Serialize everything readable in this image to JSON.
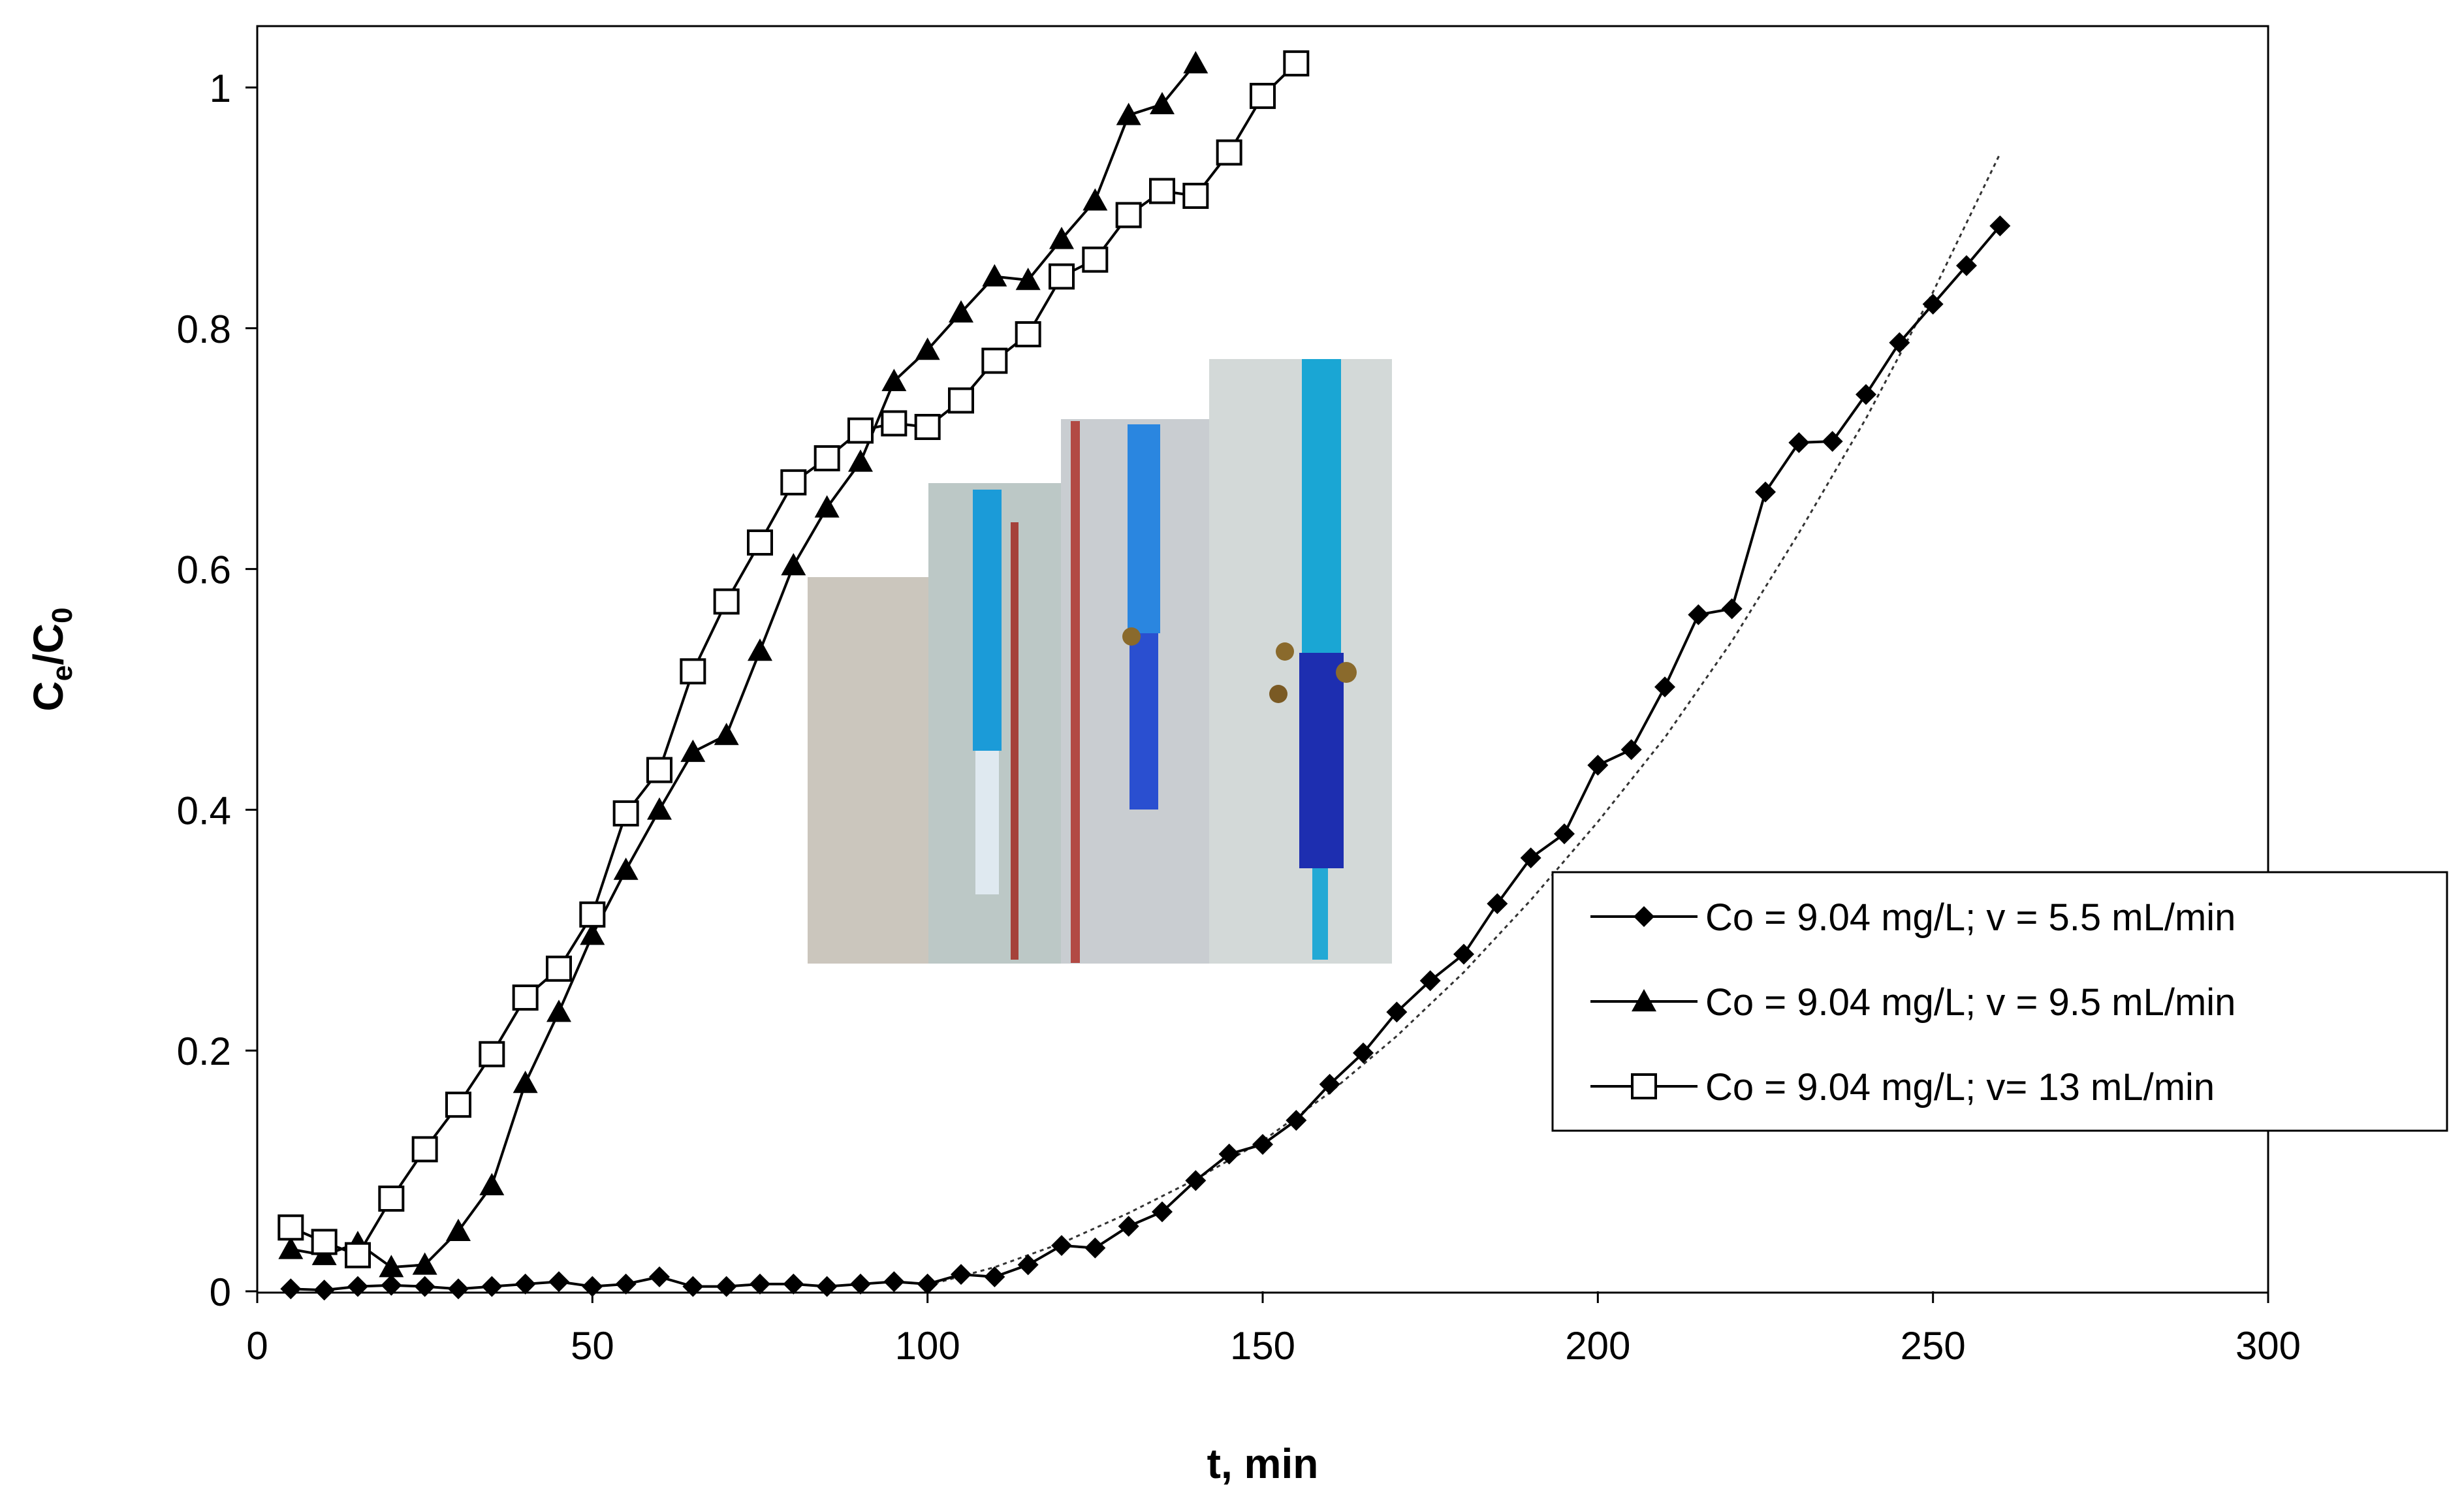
{
  "chart_data": {
    "type": "scatter",
    "title": "",
    "xlabel": "t, min",
    "ylabel": "C",
    "ylabel_sub1": "e",
    "ylabel_mid": "/C",
    "ylabel_sub2": "0",
    "xlim": [
      0,
      300
    ],
    "ylim": [
      0,
      1.0
    ],
    "xticks": [
      0,
      50,
      100,
      150,
      200,
      250,
      300
    ],
    "xtick_labels": [
      "0",
      "50",
      "100",
      "150",
      "200",
      "250",
      "300"
    ],
    "yticks": [
      0,
      0.2,
      0.4,
      0.6,
      0.8,
      1.0
    ],
    "ytick_labels": [
      "0",
      "0.2",
      "0.4",
      "0.6",
      "0.8",
      "1"
    ],
    "grid": false,
    "legend_position": "right",
    "series": [
      {
        "name": "Co = 9.04 mg/L; v = 5.5 mL/min",
        "marker": "diamond",
        "color": "#000000",
        "x": [
          5,
          10,
          15,
          20,
          25,
          30,
          35,
          40,
          45,
          50,
          55,
          60,
          65,
          70,
          75,
          80,
          85,
          90,
          95,
          100,
          105,
          110,
          115,
          120,
          125,
          130,
          135,
          140,
          145,
          150,
          155,
          160,
          165,
          170,
          175,
          180,
          185,
          190,
          195,
          200,
          205,
          210,
          215,
          220,
          225,
          230,
          235,
          240,
          245,
          250,
          255,
          260
        ],
        "y": [
          0.002,
          0.001,
          0.004,
          0.005,
          0.004,
          0.002,
          0.004,
          0.006,
          0.008,
          0.004,
          0.006,
          0.012,
          0.004,
          0.004,
          0.006,
          0.006,
          0.004,
          0.006,
          0.008,
          0.006,
          0.014,
          0.012,
          0.022,
          0.038,
          0.036,
          0.054,
          0.066,
          0.092,
          0.114,
          0.122,
          0.142,
          0.172,
          0.198,
          0.232,
          0.258,
          0.28,
          0.322,
          0.36,
          0.38,
          0.437,
          0.45,
          0.502,
          0.562,
          0.567,
          0.664,
          0.705,
          0.706,
          0.745,
          0.788,
          0.82,
          0.852,
          0.885
        ]
      },
      {
        "name": "Co = 9.04 mg/L; v = 9.5 mL/min",
        "marker": "triangle",
        "color": "#000000",
        "x": [
          5,
          10,
          15,
          20,
          25,
          30,
          35,
          40,
          45,
          50,
          55,
          60,
          65,
          70,
          75,
          80,
          85,
          90,
          95,
          100,
          105,
          110,
          115,
          120,
          125,
          130,
          135,
          140
        ],
        "y": [
          0.035,
          0.03,
          0.04,
          0.02,
          0.022,
          0.05,
          0.088,
          0.173,
          0.232,
          0.296,
          0.35,
          0.4,
          0.448,
          0.462,
          0.532,
          0.603,
          0.651,
          0.689,
          0.756,
          0.782,
          0.813,
          0.843,
          0.84,
          0.874,
          0.906,
          0.977,
          0.986,
          1.02
        ]
      },
      {
        "name": "Co = 9.04 mg/L; v= 13 mL/min",
        "marker": "square-open",
        "color": "#000000",
        "x": [
          5,
          10,
          15,
          20,
          25,
          30,
          35,
          40,
          45,
          50,
          55,
          60,
          65,
          70,
          75,
          80,
          85,
          90,
          95,
          100,
          105,
          110,
          115,
          120,
          125,
          130,
          135,
          140,
          145,
          150,
          155
        ],
        "y": [
          0.053,
          0.041,
          0.03,
          0.077,
          0.118,
          0.155,
          0.197,
          0.244,
          0.268,
          0.313,
          0.397,
          0.433,
          0.515,
          0.573,
          0.622,
          0.672,
          0.692,
          0.715,
          0.721,
          0.718,
          0.74,
          0.773,
          0.795,
          0.843,
          0.857,
          0.894,
          0.914,
          0.91,
          0.946,
          0.993,
          1.02
        ]
      }
    ],
    "fit_curve": {
      "style": "dotted",
      "x": [
        100,
        110,
        120,
        130,
        140,
        150,
        160,
        170,
        180,
        190,
        200,
        210,
        220,
        230,
        240,
        250,
        260
      ],
      "y": [
        0.005,
        0.02,
        0.04,
        0.065,
        0.093,
        0.125,
        0.165,
        0.212,
        0.265,
        0.325,
        0.39,
        0.46,
        0.54,
        0.63,
        0.725,
        0.83,
        0.945
      ]
    }
  },
  "inset_photo": {
    "description_name": "column-photos",
    "panel_colors": [
      "#c9c4bc",
      "#b9c5c9",
      "#c8ccd0",
      "#cfd6d6"
    ],
    "liquid_colors": [
      "#1b9bd8",
      "#2a7de0",
      "#1f5ad6",
      "#1d2eb0"
    ]
  }
}
